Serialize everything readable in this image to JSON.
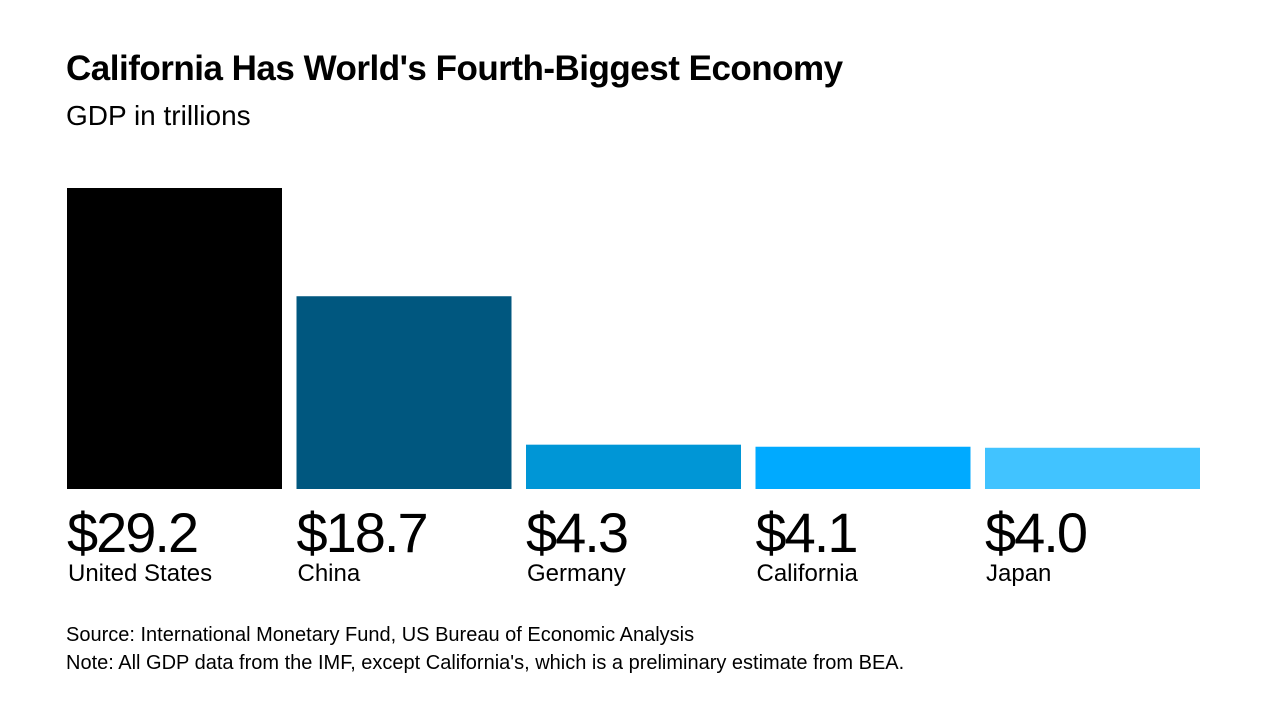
{
  "title": "California Has World's Fourth-Biggest Economy",
  "subtitle": "GDP in trillions",
  "source": "Source: International Monetary Fund, US Bureau of Economic Analysis",
  "note": "Note: All GDP data from the IMF, except California's, which is a preliminary estimate from BEA.",
  "chart_data": {
    "type": "bar",
    "title": "California Has World's Fourth-Biggest Economy",
    "subtitle": "GDP in trillions",
    "xlabel": "",
    "ylabel": "GDP in trillions",
    "ylim": [
      0,
      29.2
    ],
    "grid": false,
    "legend": "none",
    "categories": [
      "United States",
      "China",
      "Germany",
      "California",
      "Japan"
    ],
    "values": [
      29.2,
      18.7,
      4.3,
      4.1,
      4.0
    ],
    "value_labels": [
      "$29.2",
      "$18.7",
      "$4.3",
      "$4.1",
      "$4.0"
    ],
    "colors": [
      "#000000",
      "#00577f",
      "#0096d6",
      "#00aaff",
      "#41c3ff"
    ]
  }
}
